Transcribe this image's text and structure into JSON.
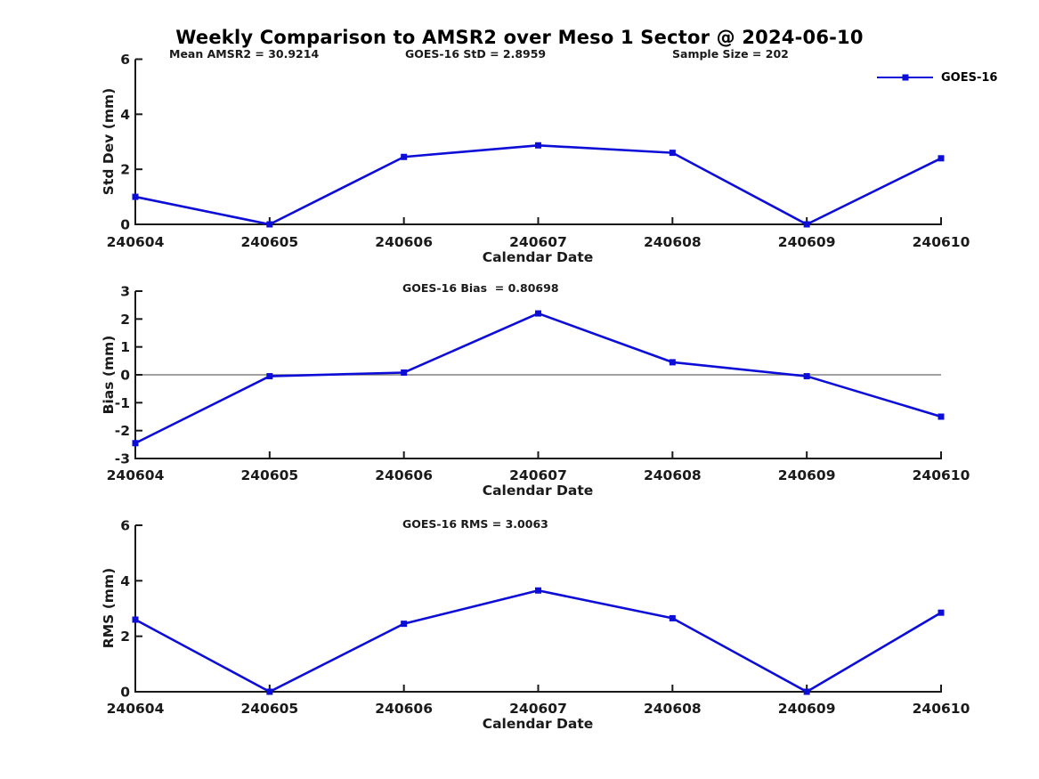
{
  "title": "Weekly Comparison to AMSR2 over Meso 1 Sector @ 2024-06-10",
  "legend": {
    "label": "GOES-16",
    "position": "top-right",
    "marker": "filled-square"
  },
  "colors": {
    "line": "#0d0dd8",
    "axis": "#1a1a1a",
    "text": "#1a1a1a",
    "zero_line": "#808080",
    "background": "#ffffff"
  },
  "chart_data": [
    {
      "type": "line",
      "name": "std-dev",
      "ylabel": "Std Dev (mm)",
      "xlabel": "Calendar Date",
      "categories": [
        "240604",
        "240605",
        "240606",
        "240607",
        "240608",
        "240609",
        "240610"
      ],
      "yticks": [
        0,
        2,
        4,
        6
      ],
      "ylim": [
        0,
        6
      ],
      "grid": false,
      "zero_line": false,
      "annotations": [
        "Mean AMSR2 = 30.9214",
        "GOES-16 StD = 2.8959",
        "Sample Size = 202"
      ],
      "series": [
        {
          "name": "GOES-16",
          "values": [
            1.0,
            0.0,
            2.45,
            2.87,
            2.6,
            0.0,
            2.4
          ]
        }
      ]
    },
    {
      "type": "line",
      "name": "bias",
      "ylabel": "Bias (mm)",
      "xlabel": "Calendar Date",
      "categories": [
        "240604",
        "240605",
        "240606",
        "240607",
        "240608",
        "240609",
        "240610"
      ],
      "yticks": [
        -3,
        -2,
        -1,
        0,
        1,
        2,
        3
      ],
      "ylim": [
        -3,
        3
      ],
      "grid": false,
      "zero_line": true,
      "annotations": [
        "GOES-16 Bias  = 0.80698"
      ],
      "series": [
        {
          "name": "GOES-16",
          "values": [
            -2.45,
            -0.05,
            0.08,
            2.2,
            0.45,
            -0.05,
            -1.5
          ]
        }
      ]
    },
    {
      "type": "line",
      "name": "rms",
      "ylabel": "RMS (mm)",
      "xlabel": "Calendar Date",
      "categories": [
        "240604",
        "240605",
        "240606",
        "240607",
        "240608",
        "240609",
        "240610"
      ],
      "yticks": [
        0,
        2,
        4,
        6
      ],
      "ylim": [
        0,
        6
      ],
      "grid": false,
      "zero_line": false,
      "annotations": [
        "GOES-16 RMS = 3.0063"
      ],
      "series": [
        {
          "name": "GOES-16",
          "values": [
            2.6,
            0.0,
            2.45,
            3.65,
            2.65,
            0.0,
            2.85
          ]
        }
      ]
    }
  ]
}
